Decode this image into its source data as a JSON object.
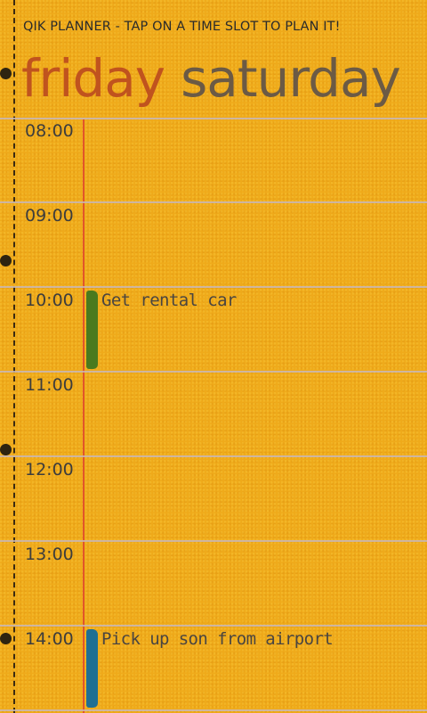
{
  "app": {
    "title": "QIK PLANNER - TAP ON A TIME SLOT TO PLAN IT!"
  },
  "pivot": {
    "tabs": [
      {
        "label": "friday",
        "active": true
      },
      {
        "label": "saturday",
        "active": false
      }
    ]
  },
  "slots": [
    {
      "time": "08:00",
      "event": "",
      "color": ""
    },
    {
      "time": "09:00",
      "event": "",
      "color": ""
    },
    {
      "time": "10:00",
      "event": "Get rental car",
      "color": "#4a7a1e"
    },
    {
      "time": "11:00",
      "event": "",
      "color": ""
    },
    {
      "time": "12:00",
      "event": "",
      "color": ""
    },
    {
      "time": "13:00",
      "event": "",
      "color": ""
    },
    {
      "time": "14:00",
      "event": "Pick up son from airport",
      "color": "#1f6f93"
    }
  ],
  "colors": {
    "background": "#efaa1a",
    "active_tab": "#c0531e",
    "inactive_tab": "#6b5a45",
    "margin_line": "#e2552a",
    "rule_line": "#c8b7b7"
  }
}
